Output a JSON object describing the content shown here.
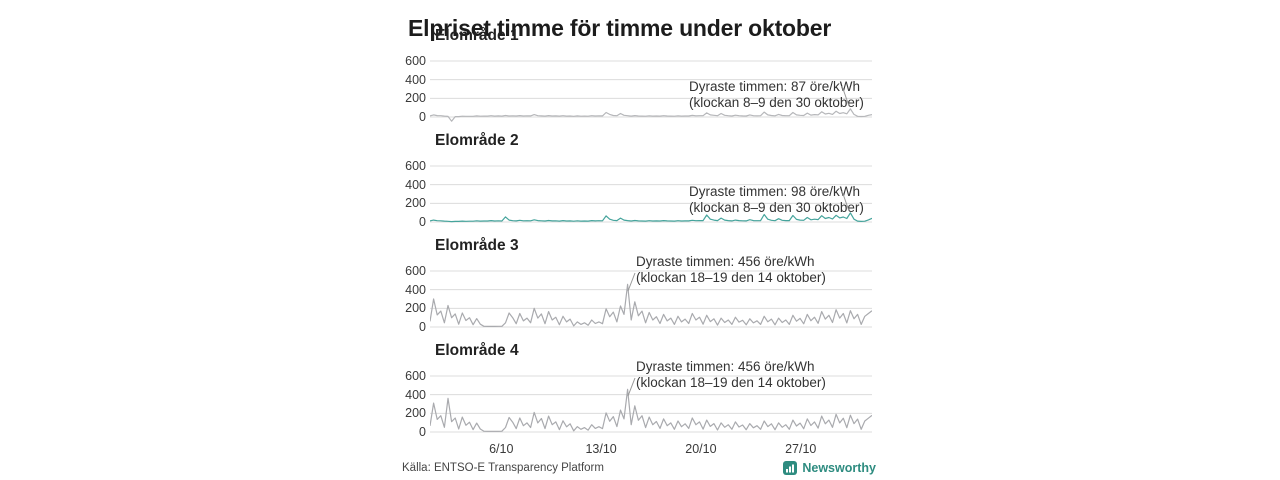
{
  "title": "Elpriset timme för timme under oktober",
  "source": "Källa: ENTSO-E Transparency Platform",
  "brand": {
    "name": "Newsworthy",
    "color": "#2E8C80",
    "icon": "bar-chart-logo-icon"
  },
  "colors": {
    "background": "#ffffff",
    "grid": "#dcdcdc",
    "gray_line": "#b3b4b7",
    "teal_line": "#45a49c",
    "leader": "#999999",
    "text": "#333333"
  },
  "x_axis": {
    "ticks": [
      {
        "label": "6/10",
        "day": 6
      },
      {
        "label": "13/10",
        "day": 13
      },
      {
        "label": "20/10",
        "day": 20
      },
      {
        "label": "27/10",
        "day": 27
      }
    ]
  },
  "chart_data": [
    {
      "type": "line",
      "title": "Elområde 1",
      "color": "#b6b7ba",
      "unit": "öre/kWh",
      "x_range": "1–31 oktober, timvärden (samplade ~4/dag)",
      "yticks": [
        600,
        400,
        200,
        0
      ],
      "ylim": [
        -60,
        660
      ],
      "grid": true,
      "annotation": {
        "line1": "Dyraste timmen: 87 öre/kWh",
        "line2": "(klockan 8–9 den 30 oktober)"
      },
      "max": {
        "value": 87,
        "hour": "8–9",
        "date": "30 oktober"
      },
      "values": [
        12,
        22,
        15,
        14,
        10,
        6,
        -45,
        4,
        4,
        9,
        7,
        8,
        8,
        12,
        9,
        10,
        10,
        14,
        10,
        12,
        10,
        16,
        11,
        13,
        11,
        15,
        11,
        13,
        12,
        26,
        14,
        12,
        10,
        15,
        11,
        12,
        10,
        14,
        10,
        11,
        8,
        12,
        9,
        10,
        9,
        14,
        11,
        13,
        12,
        48,
        28,
        16,
        14,
        38,
        18,
        14,
        10,
        15,
        11,
        10,
        9,
        13,
        10,
        11,
        10,
        14,
        11,
        10,
        9,
        13,
        10,
        11,
        11,
        17,
        13,
        14,
        14,
        44,
        22,
        18,
        14,
        38,
        18,
        14,
        11,
        19,
        14,
        12,
        11,
        23,
        14,
        13,
        14,
        52,
        22,
        16,
        13,
        28,
        16,
        14,
        14,
        48,
        22,
        18,
        16,
        42,
        20,
        26,
        22,
        56,
        32,
        40,
        28,
        62,
        38,
        46,
        34,
        87,
        28,
        8,
        5,
        7,
        18,
        26
      ]
    },
    {
      "type": "line",
      "title": "Elområde 2",
      "color": "#45a49c",
      "unit": "öre/kWh",
      "x_range": "1–31 oktober, timvärden (samplade ~4/dag)",
      "yticks": [
        600,
        400,
        200,
        0
      ],
      "ylim": [
        -60,
        660
      ],
      "grid": true,
      "annotation": {
        "line1": "Dyraste timmen: 98 öre/kWh",
        "line2": "(klockan 8–9 den 30 oktober)"
      },
      "max": {
        "value": 98,
        "hour": "8–9",
        "date": "30 oktober"
      },
      "values": [
        12,
        20,
        14,
        13,
        10,
        7,
        4,
        6,
        6,
        10,
        8,
        9,
        9,
        13,
        10,
        11,
        11,
        15,
        11,
        13,
        11,
        55,
        20,
        14,
        12,
        18,
        13,
        14,
        13,
        24,
        15,
        13,
        11,
        16,
        12,
        13,
        10,
        15,
        11,
        12,
        9,
        13,
        10,
        11,
        10,
        15,
        12,
        14,
        13,
        65,
        30,
        18,
        15,
        42,
        20,
        15,
        11,
        16,
        12,
        11,
        10,
        14,
        11,
        12,
        11,
        15,
        12,
        11,
        10,
        14,
        11,
        12,
        12,
        18,
        14,
        15,
        15,
        75,
        30,
        20,
        15,
        42,
        20,
        15,
        12,
        20,
        15,
        13,
        12,
        25,
        15,
        14,
        15,
        80,
        30,
        18,
        14,
        35,
        18,
        15,
        15,
        70,
        28,
        20,
        18,
        48,
        24,
        30,
        26,
        68,
        38,
        48,
        32,
        72,
        44,
        54,
        38,
        98,
        30,
        10,
        6,
        9,
        22,
        40
      ]
    },
    {
      "type": "line",
      "title": "Elområde 3",
      "color": "#a9aaae",
      "unit": "öre/kWh",
      "x_range": "1–31 oktober, timvärden (samplade ~4/dag)",
      "yticks": [
        600,
        400,
        200,
        0
      ],
      "ylim": [
        -60,
        660
      ],
      "grid": true,
      "annotation": {
        "line1": "Dyraste timmen: 456 öre/kWh",
        "line2": "(klockan 18–19 den 14 oktober)"
      },
      "max": {
        "value": 456,
        "hour": "18–19",
        "date": "14 oktober"
      },
      "values": [
        60,
        300,
        130,
        170,
        45,
        230,
        100,
        140,
        30,
        150,
        70,
        100,
        25,
        90,
        30,
        8,
        6,
        7,
        6,
        7,
        8,
        45,
        150,
        100,
        35,
        145,
        65,
        95,
        45,
        200,
        95,
        140,
        35,
        165,
        75,
        105,
        25,
        115,
        55,
        85,
        12,
        55,
        28,
        45,
        18,
        75,
        38,
        55,
        35,
        195,
        110,
        160,
        55,
        225,
        135,
        456,
        75,
        270,
        120,
        170,
        45,
        155,
        75,
        110,
        38,
        135,
        65,
        95,
        28,
        115,
        55,
        85,
        38,
        145,
        75,
        105,
        30,
        125,
        58,
        88,
        20,
        95,
        48,
        75,
        28,
        105,
        52,
        72,
        24,
        88,
        44,
        66,
        28,
        115,
        56,
        85,
        24,
        95,
        48,
        75,
        28,
        125,
        62,
        92,
        34,
        135,
        68,
        105,
        40,
        165,
        85,
        125,
        48,
        185,
        95,
        145,
        44,
        175,
        88,
        135,
        28,
        115,
        145,
        175
      ]
    },
    {
      "type": "line",
      "title": "Elområde 4",
      "color": "#a9aaae",
      "unit": "öre/kWh",
      "x_range": "1–31 oktober, timvärden (samplade ~4/dag)",
      "yticks": [
        600,
        400,
        200,
        0
      ],
      "ylim": [
        -60,
        660
      ],
      "grid": true,
      "annotation": {
        "line1": "Dyraste timmen: 456 öre/kWh",
        "line2": "(klockan 18–19 den 14 oktober)"
      },
      "max": {
        "value": 456,
        "hour": "18–19",
        "date": "14 oktober"
      },
      "values": [
        65,
        310,
        135,
        175,
        50,
        360,
        110,
        150,
        32,
        160,
        72,
        105,
        26,
        95,
        32,
        9,
        7,
        8,
        7,
        8,
        9,
        48,
        155,
        105,
        36,
        150,
        68,
        98,
        48,
        210,
        98,
        145,
        36,
        170,
        78,
        108,
        26,
        120,
        56,
        88,
        13,
        58,
        29,
        47,
        19,
        78,
        39,
        57,
        36,
        205,
        115,
        165,
        58,
        235,
        140,
        456,
        78,
        280,
        125,
        175,
        47,
        160,
        78,
        113,
        39,
        140,
        67,
        98,
        29,
        118,
        57,
        88,
        39,
        150,
        78,
        108,
        31,
        128,
        60,
        90,
        21,
        98,
        50,
        78,
        29,
        108,
        54,
        75,
        25,
        90,
        45,
        68,
        29,
        118,
        58,
        88,
        25,
        98,
        50,
        78,
        29,
        128,
        64,
        95,
        35,
        140,
        70,
        108,
        42,
        170,
        88,
        128,
        50,
        190,
        98,
        148,
        46,
        180,
        90,
        138,
        29,
        118,
        148,
        178
      ]
    }
  ]
}
